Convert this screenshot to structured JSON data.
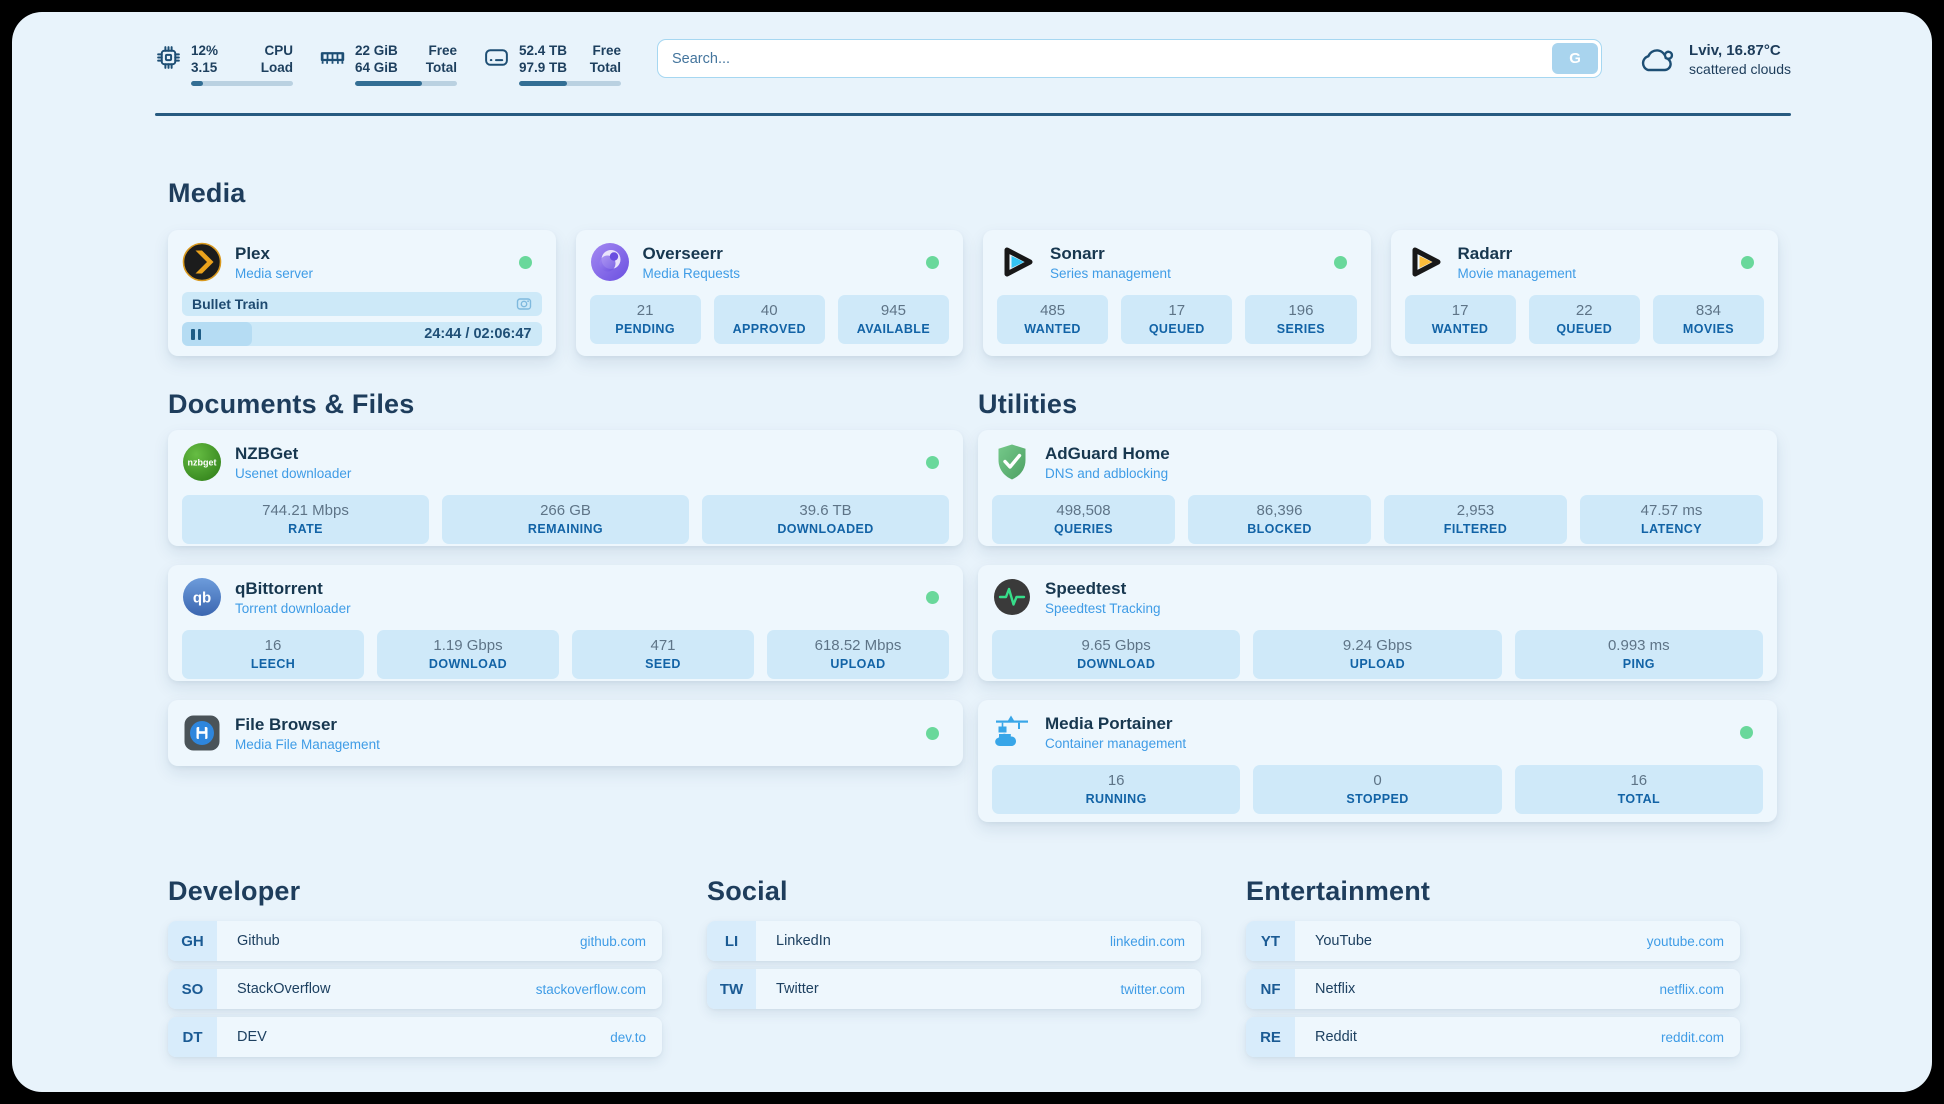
{
  "colors": {
    "accent": "#3f9ce6",
    "status_online": "#69d89b",
    "navy": "#1d3f5e",
    "pill": "#cfe9f9",
    "card": "#eef7fd"
  },
  "header": {
    "system": [
      {
        "icon": "cpu-icon",
        "value_top": "12%",
        "value_bottom": "3.15",
        "label_top": "CPU",
        "label_bottom": "Load",
        "progress": 12
      },
      {
        "icon": "ram-icon",
        "value_top": "22 GiB",
        "value_bottom": "64 GiB",
        "label_top": "Free",
        "label_bottom": "Total",
        "progress": 66
      },
      {
        "icon": "disk-icon",
        "value_top": "52.4 TB",
        "value_bottom": "97.9 TB",
        "label_top": "Free",
        "label_bottom": "Total",
        "progress": 47
      }
    ],
    "search": {
      "placeholder": "Search...",
      "button_label": "G"
    },
    "weather": {
      "location_temp": "Lviv, 16.87°C",
      "condition": "scattered clouds"
    }
  },
  "section_titles": {
    "media": "Media",
    "documents": "Documents & Files",
    "utilities": "Utilities",
    "developer": "Developer",
    "social": "Social",
    "entertainment": "Entertainment"
  },
  "apps": {
    "plex": {
      "name": "Plex",
      "desc": "Media server",
      "status_dot": true,
      "now_playing": {
        "title": "Bullet Train",
        "progress_pct": 19.5
      },
      "time_display": "24:44 / 02:06:47"
    },
    "overseerr": {
      "name": "Overseerr",
      "desc": "Media Requests",
      "status_dot": true,
      "stats": [
        {
          "value": "21",
          "label": "PENDING"
        },
        {
          "value": "40",
          "label": "APPROVED"
        },
        {
          "value": "945",
          "label": "AVAILABLE"
        }
      ]
    },
    "sonarr": {
      "name": "Sonarr",
      "desc": "Series management",
      "status_dot": true,
      "stats": [
        {
          "value": "485",
          "label": "WANTED"
        },
        {
          "value": "17",
          "label": "QUEUED"
        },
        {
          "value": "196",
          "label": "SERIES"
        }
      ]
    },
    "radarr": {
      "name": "Radarr",
      "desc": "Movie management",
      "status_dot": true,
      "stats": [
        {
          "value": "17",
          "label": "WANTED"
        },
        {
          "value": "22",
          "label": "QUEUED"
        },
        {
          "value": "834",
          "label": "MOVIES"
        }
      ]
    },
    "nzbget": {
      "name": "NZBGet",
      "desc": "Usenet downloader",
      "status_dot": true,
      "logo_text": "nzbget",
      "stats": [
        {
          "value": "744.21 Mbps",
          "label": "RATE"
        },
        {
          "value": "266 GB",
          "label": "REMAINING"
        },
        {
          "value": "39.6 TB",
          "label": "DOWNLOADED"
        }
      ]
    },
    "qbittorrent": {
      "name": "qBittorrent",
      "desc": "Torrent downloader",
      "status_dot": true,
      "logo_text": "qb",
      "stats": [
        {
          "value": "16",
          "label": "LEECH"
        },
        {
          "value": "1.19 Gbps",
          "label": "DOWNLOAD"
        },
        {
          "value": "471",
          "label": "SEED"
        },
        {
          "value": "618.52 Mbps",
          "label": "UPLOAD"
        }
      ]
    },
    "filebrowser": {
      "name": "File Browser",
      "desc": "Media File Management",
      "status_dot": true
    },
    "adguard": {
      "name": "AdGuard Home",
      "desc": "DNS and adblocking",
      "status_dot": false,
      "stats": [
        {
          "value": "498,508",
          "label": "QUERIES"
        },
        {
          "value": "86,396",
          "label": "BLOCKED"
        },
        {
          "value": "2,953",
          "label": "FILTERED"
        },
        {
          "value": "47.57 ms",
          "label": "LATENCY"
        }
      ]
    },
    "speedtest": {
      "name": "Speedtest",
      "desc": "Speedtest Tracking",
      "status_dot": false,
      "stats": [
        {
          "value": "9.65 Gbps",
          "label": "DOWNLOAD"
        },
        {
          "value": "9.24 Gbps",
          "label": "UPLOAD"
        },
        {
          "value": "0.993 ms",
          "label": "PING"
        }
      ]
    },
    "portainer": {
      "name": "Media Portainer",
      "desc": "Container management",
      "status_dot": true,
      "stats": [
        {
          "value": "16",
          "label": "RUNNING"
        },
        {
          "value": "0",
          "label": "STOPPED"
        },
        {
          "value": "16",
          "label": "TOTAL"
        }
      ]
    }
  },
  "links": {
    "developer": [
      {
        "abbr": "GH",
        "name": "Github",
        "url": "github.com"
      },
      {
        "abbr": "SO",
        "name": "StackOverflow",
        "url": "stackoverflow.com"
      },
      {
        "abbr": "DT",
        "name": "DEV",
        "url": "dev.to"
      }
    ],
    "social": [
      {
        "abbr": "LI",
        "name": "LinkedIn",
        "url": "linkedin.com"
      },
      {
        "abbr": "TW",
        "name": "Twitter",
        "url": "twitter.com"
      }
    ],
    "entertainment": [
      {
        "abbr": "YT",
        "name": "YouTube",
        "url": "youtube.com"
      },
      {
        "abbr": "NF",
        "name": "Netflix",
        "url": "netflix.com"
      },
      {
        "abbr": "RE",
        "name": "Reddit",
        "url": "reddit.com"
      }
    ]
  }
}
